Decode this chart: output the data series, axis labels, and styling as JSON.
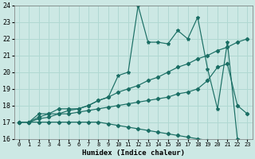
{
  "xlabel": "Humidex (Indice chaleur)",
  "ylabel": "",
  "bg_color": "#cce8e4",
  "line_color": "#1a6e64",
  "grid_color": "#b0d8d2",
  "xlim": [
    -0.5,
    23.5
  ],
  "ylim": [
    16,
    24
  ],
  "xticks": [
    0,
    1,
    2,
    3,
    4,
    5,
    6,
    7,
    8,
    9,
    10,
    11,
    12,
    13,
    14,
    15,
    16,
    17,
    18,
    19,
    20,
    21,
    22,
    23
  ],
  "yticks": [
    16,
    17,
    18,
    19,
    20,
    21,
    22,
    23,
    24
  ],
  "line1_x": [
    0,
    1,
    2,
    3,
    4,
    5,
    6,
    7,
    8,
    9,
    10,
    11,
    12,
    13,
    14,
    15,
    16,
    17,
    18,
    19,
    20,
    21,
    22,
    23
  ],
  "line1_y": [
    17.0,
    17.0,
    17.5,
    17.5,
    17.5,
    17.7,
    17.8,
    18.0,
    18.3,
    18.5,
    19.8,
    20.0,
    24.0,
    21.8,
    21.8,
    21.7,
    22.5,
    22.0,
    23.3,
    20.2,
    17.8,
    21.8,
    16.0,
    15.85
  ],
  "line2_x": [
    0,
    1,
    2,
    3,
    4,
    5,
    6,
    7,
    8,
    9,
    10,
    11,
    12,
    13,
    14,
    15,
    16,
    17,
    18,
    19,
    20,
    21,
    22,
    23
  ],
  "line2_y": [
    17.0,
    17.0,
    17.3,
    17.5,
    17.8,
    17.8,
    17.8,
    18.0,
    18.3,
    18.5,
    18.8,
    19.0,
    19.2,
    19.5,
    19.7,
    20.0,
    20.3,
    20.5,
    20.8,
    21.0,
    21.3,
    21.5,
    21.8,
    22.0
  ],
  "line3_x": [
    0,
    1,
    2,
    3,
    4,
    5,
    6,
    7,
    8,
    9,
    10,
    11,
    12,
    13,
    14,
    15,
    16,
    17,
    18,
    19,
    20,
    21,
    22,
    23
  ],
  "line3_y": [
    17.0,
    17.0,
    17.2,
    17.3,
    17.5,
    17.5,
    17.6,
    17.7,
    17.8,
    17.9,
    18.0,
    18.1,
    18.2,
    18.3,
    18.4,
    18.5,
    18.7,
    18.8,
    19.0,
    19.5,
    20.3,
    20.5,
    18.0,
    17.5
  ],
  "line4_x": [
    0,
    1,
    2,
    3,
    4,
    5,
    6,
    7,
    8,
    9,
    10,
    11,
    12,
    13,
    14,
    15,
    16,
    17,
    18,
    19,
    20,
    21,
    22,
    23
  ],
  "line4_y": [
    17.0,
    17.0,
    17.0,
    17.0,
    17.0,
    17.0,
    17.0,
    17.0,
    17.0,
    16.9,
    16.8,
    16.7,
    16.6,
    16.5,
    16.4,
    16.3,
    16.2,
    16.1,
    16.0,
    15.9,
    15.85,
    15.85,
    15.85,
    15.85
  ]
}
